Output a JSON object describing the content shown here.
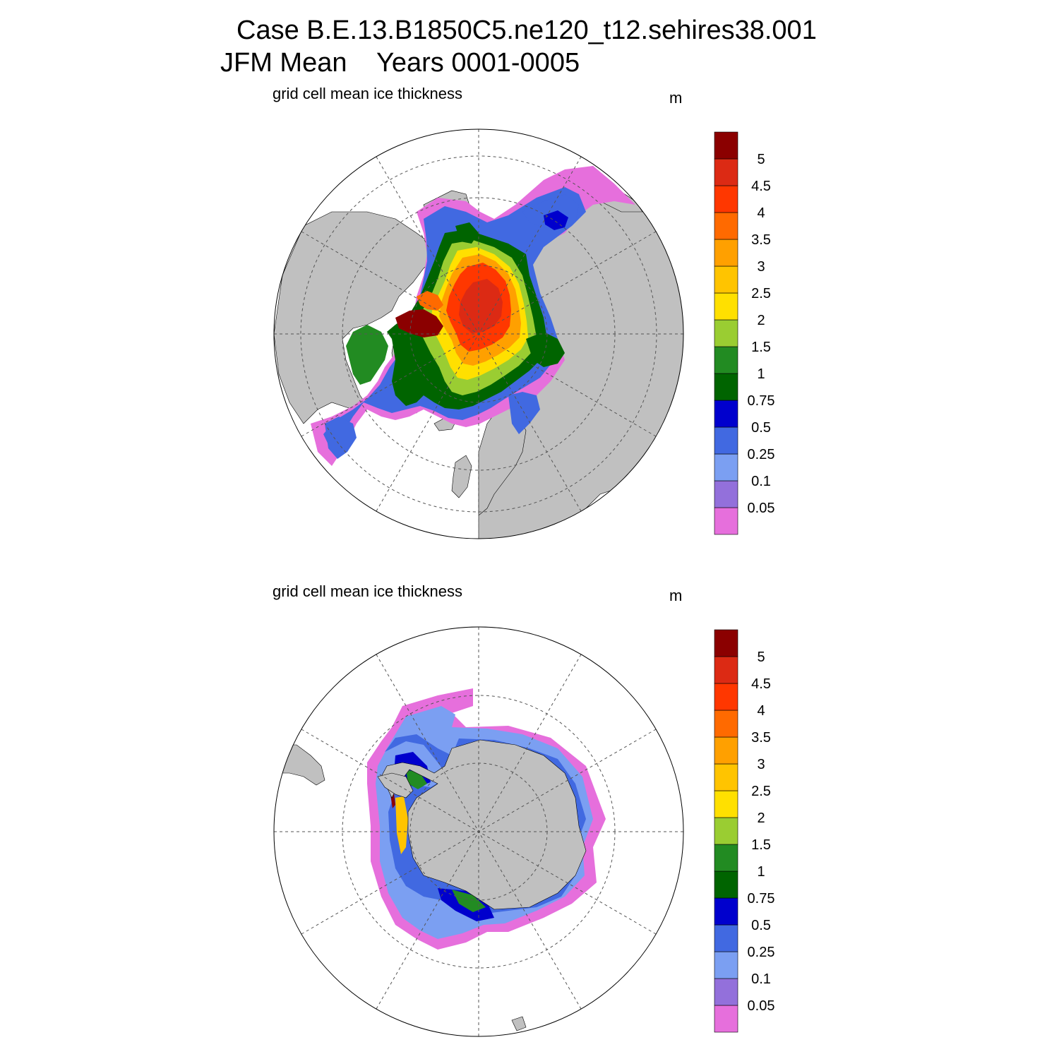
{
  "title": {
    "line1": "Case B.E.13.B1850C5.ne120_t12.sehires38.001",
    "line2": "JFM Mean    Years 0001-0005"
  },
  "palette": {
    "land": "#c0c0c0",
    "ocean": "#ffffff",
    "levels": [
      "#e66fdc",
      "#9370db",
      "#7b9ff2",
      "#4169e1",
      "#0000cd",
      "#006400",
      "#228b22",
      "#9acd32",
      "#ffe000",
      "#ffc400",
      "#ffa000",
      "#ff6a00",
      "#ff3700",
      "#dc2a14",
      "#8b0000"
    ]
  },
  "colorbar": {
    "labels": [
      "0.05",
      "0.1",
      "0.25",
      "0.5",
      "0.75",
      "1",
      "1.5",
      "2",
      "2.5",
      "3",
      "3.5",
      "4",
      "4.5",
      "5"
    ]
  },
  "panels": [
    {
      "id": "north",
      "subtitle": "grid cell mean ice thickness",
      "units": "m"
    },
    {
      "id": "south",
      "subtitle": "grid cell mean ice thickness",
      "units": "m"
    }
  ]
}
